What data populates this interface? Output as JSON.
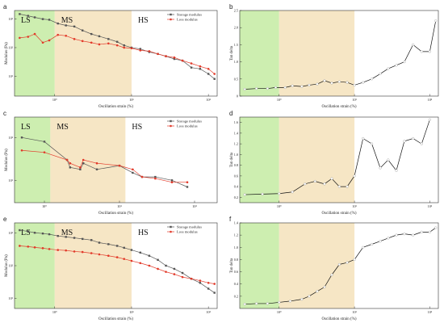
{
  "colors": {
    "ls_region": "#cdeeb0",
    "ms_region": "#f6e6c5",
    "storage": "#555555",
    "loss": "#e23a2a",
    "tan": "#111111"
  },
  "chart_data": [
    {
      "panel": "a",
      "type": "line",
      "ylabel": "Modulus (Pa)",
      "xlabel": "Oscillation strain (%)",
      "xscale": "log",
      "yscale": "log",
      "xlim": [
        0.3,
        130
      ],
      "ylim": [
        2,
        2000
      ],
      "xticks": [
        {
          "v": 1,
          "t": "10⁰"
        },
        {
          "v": 10,
          "t": "10¹"
        },
        {
          "v": 100,
          "t": "10²"
        }
      ],
      "yticks": [
        {
          "v": 10,
          "t": "10¹"
        },
        {
          "v": 100,
          "t": "10²"
        },
        {
          "v": 1000,
          "t": "10³"
        }
      ],
      "regions": [
        {
          "label": "LS",
          "x0": 0.3,
          "x1": 1
        },
        {
          "label": "MS",
          "x0": 1,
          "x1": 10
        },
        {
          "label": "HS",
          "x0": 10,
          "x1": 130
        }
      ],
      "legend": [
        "Storage modulus",
        "Loss modulus"
      ],
      "series": [
        {
          "name": "Storage modulus",
          "x": [
            0.35,
            0.45,
            0.55,
            0.7,
            0.85,
            1.1,
            1.4,
            1.8,
            2.3,
            3,
            3.8,
            5,
            6.5,
            8,
            10,
            13,
            17,
            22,
            28,
            36,
            46,
            60,
            78,
            100,
            120
          ],
          "y": [
            1500,
            1300,
            1150,
            1000,
            950,
            700,
            600,
            550,
            400,
            300,
            250,
            200,
            160,
            120,
            100,
            90,
            70,
            60,
            50,
            40,
            35,
            20,
            18,
            12,
            8
          ]
        },
        {
          "name": "Loss modulus",
          "x": [
            0.35,
            0.45,
            0.55,
            0.7,
            0.85,
            1.1,
            1.4,
            1.8,
            2.3,
            3,
            3.8,
            5,
            6.5,
            8,
            10,
            13,
            17,
            22,
            28,
            36,
            46,
            60,
            78,
            100,
            120
          ],
          "y": [
            220,
            240,
            300,
            150,
            180,
            280,
            260,
            200,
            170,
            150,
            130,
            140,
            120,
            100,
            95,
            80,
            75,
            60,
            50,
            45,
            35,
            28,
            22,
            18,
            12
          ]
        }
      ]
    },
    {
      "panel": "b",
      "type": "line",
      "ylabel": "Tan delta",
      "xlabel": "Oscillation strain (%)",
      "xscale": "log",
      "yscale": "linear",
      "xlim": [
        0.3,
        130
      ],
      "ylim": [
        0,
        2.5
      ],
      "xticks": [
        {
          "v": 1,
          "t": "10⁰"
        },
        {
          "v": 10,
          "t": "10¹"
        },
        {
          "v": 100,
          "t": "10²"
        }
      ],
      "yticks": [
        {
          "v": 0,
          "t": "0"
        },
        {
          "v": 0.5,
          "t": "0.5"
        },
        {
          "v": 1.0,
          "t": "1.0"
        },
        {
          "v": 1.5,
          "t": "1.5"
        },
        {
          "v": 2.0,
          "t": "2.0"
        },
        {
          "v": 2.5,
          "t": "2.5"
        }
      ],
      "regions": [
        {
          "label": "",
          "x0": 0.3,
          "x1": 1
        },
        {
          "label": "",
          "x0": 1,
          "x1": 10
        }
      ],
      "series": [
        {
          "name": "",
          "x": [
            0.35,
            0.5,
            0.7,
            0.9,
            1.2,
            1.5,
            2,
            2.5,
            3.2,
            4,
            5,
            6.3,
            8,
            10,
            13,
            17,
            22,
            28,
            36,
            46,
            60,
            78,
            100,
            120
          ],
          "y": [
            0.2,
            0.22,
            0.22,
            0.25,
            0.25,
            0.3,
            0.28,
            0.32,
            0.35,
            0.45,
            0.38,
            0.42,
            0.4,
            0.32,
            0.4,
            0.5,
            0.65,
            0.8,
            0.9,
            1.0,
            1.5,
            1.3,
            1.3,
            2.2
          ]
        }
      ]
    },
    {
      "panel": "c",
      "type": "line",
      "ylabel": "Modulus (Pa)",
      "xlabel": "Oscillation strain (%)",
      "xscale": "log",
      "yscale": "log",
      "xlim": [
        0.4,
        200
      ],
      "ylim": [
        3,
        300
      ],
      "xticks": [
        {
          "v": 1,
          "t": "10⁰"
        },
        {
          "v": 10,
          "t": "10¹"
        },
        {
          "v": 100,
          "t": "10²"
        }
      ],
      "yticks": [
        {
          "v": 10,
          "t": "10¹"
        },
        {
          "v": 100,
          "t": "10²"
        }
      ],
      "regions": [
        {
          "label": "LS",
          "x0": 0.4,
          "x1": 1.2
        },
        {
          "label": "MS",
          "x0": 1.2,
          "x1": 12
        },
        {
          "label": "HS",
          "x0": 12,
          "x1": 200
        }
      ],
      "legend": [
        "Storage modulus",
        "Loss modulus"
      ],
      "series": [
        {
          "name": "Storage modulus",
          "x": [
            0.5,
            1.0,
            2.0,
            2.2,
            3.0,
            3.3,
            5.0,
            10,
            15,
            20,
            30,
            50,
            80
          ],
          "y": [
            100,
            80,
            30,
            20,
            18,
            25,
            18,
            22,
            15,
            12,
            12,
            10,
            7
          ]
        },
        {
          "name": "Loss modulus",
          "x": [
            0.5,
            1.0,
            2.0,
            2.2,
            3.0,
            3.3,
            5.0,
            10,
            15,
            20,
            30,
            50,
            80
          ],
          "y": [
            50,
            45,
            30,
            25,
            20,
            30,
            25,
            22,
            18,
            12,
            11,
            9,
            9
          ]
        }
      ]
    },
    {
      "panel": "d",
      "type": "line",
      "ylabel": "Tan delta",
      "xlabel": "Oscillation strain (%)",
      "xscale": "log",
      "yscale": "linear",
      "xlim": [
        0.3,
        130
      ],
      "ylim": [
        0.1,
        1.7
      ],
      "xticks": [
        {
          "v": 1,
          "t": "10⁰"
        },
        {
          "v": 10,
          "t": "10¹"
        },
        {
          "v": 100,
          "t": "10²"
        }
      ],
      "yticks": [
        {
          "v": 0.2,
          "t": "0.2"
        },
        {
          "v": 0.4,
          "t": "0.4"
        },
        {
          "v": 0.6,
          "t": "0.6"
        },
        {
          "v": 0.8,
          "t": "0.8"
        },
        {
          "v": 1.0,
          "t": "1.0"
        },
        {
          "v": 1.2,
          "t": "1.2"
        },
        {
          "v": 1.4,
          "t": "1.4"
        },
        {
          "v": 1.6,
          "t": "1.6"
        }
      ],
      "regions": [
        {
          "label": "",
          "x0": 0.3,
          "x1": 1
        },
        {
          "label": "",
          "x0": 1,
          "x1": 10
        }
      ],
      "series": [
        {
          "name": "",
          "x": [
            0.35,
            0.6,
            1.0,
            1.5,
            2.2,
            3.0,
            4.0,
            5.0,
            6.3,
            8,
            10,
            13,
            17,
            22,
            28,
            36,
            46,
            60,
            78,
            100
          ],
          "y": [
            0.25,
            0.26,
            0.27,
            0.3,
            0.45,
            0.5,
            0.45,
            0.55,
            0.4,
            0.4,
            0.6,
            1.3,
            1.2,
            0.75,
            0.9,
            0.7,
            1.25,
            1.3,
            1.2,
            1.65
          ]
        }
      ]
    },
    {
      "panel": "e",
      "type": "line",
      "ylabel": "Modulus (Pa)",
      "xlabel": "Oscillation strain (%)",
      "xscale": "log",
      "yscale": "log",
      "xlim": [
        0.3,
        130
      ],
      "ylim": [
        5,
        2000
      ],
      "xticks": [
        {
          "v": 1,
          "t": "10⁰"
        },
        {
          "v": 10,
          "t": "10¹"
        },
        {
          "v": 100,
          "t": "10²"
        }
      ],
      "yticks": [
        {
          "v": 10,
          "t": "10¹"
        },
        {
          "v": 100,
          "t": "10²"
        },
        {
          "v": 1000,
          "t": "10³"
        }
      ],
      "regions": [
        {
          "label": "LS",
          "x0": 0.3,
          "x1": 1
        },
        {
          "label": "MS",
          "x0": 1,
          "x1": 10
        },
        {
          "label": "HS",
          "x0": 10,
          "x1": 130
        }
      ],
      "legend": [
        "Storage modulus",
        "Loss modulus"
      ],
      "series": [
        {
          "name": "Storage modulus",
          "x": [
            0.35,
            0.45,
            0.55,
            0.7,
            0.85,
            1.1,
            1.4,
            1.8,
            2.3,
            3,
            3.8,
            5,
            6.5,
            8,
            10,
            13,
            17,
            22,
            28,
            36,
            46,
            60,
            78,
            100,
            120
          ],
          "y": [
            1200,
            1100,
            1000,
            950,
            900,
            800,
            750,
            700,
            650,
            600,
            500,
            450,
            400,
            350,
            300,
            250,
            200,
            150,
            100,
            80,
            60,
            40,
            30,
            20,
            15
          ]
        },
        {
          "name": "Loss modulus",
          "x": [
            0.35,
            0.45,
            0.55,
            0.7,
            0.85,
            1.1,
            1.4,
            1.8,
            2.3,
            3,
            3.8,
            5,
            6.5,
            8,
            10,
            13,
            17,
            22,
            28,
            36,
            46,
            60,
            78,
            100,
            120
          ],
          "y": [
            400,
            380,
            360,
            340,
            320,
            300,
            290,
            270,
            260,
            240,
            220,
            200,
            180,
            160,
            140,
            120,
            100,
            80,
            65,
            55,
            45,
            40,
            35,
            30,
            28
          ]
        }
      ]
    },
    {
      "panel": "f",
      "type": "line",
      "ylabel": "Tan delta",
      "xlabel": "Oscillation strain (%)",
      "xscale": "log",
      "yscale": "linear",
      "xlim": [
        0.3,
        130
      ],
      "ylim": [
        0,
        1.4
      ],
      "xticks": [
        {
          "v": 1,
          "t": "10⁰"
        },
        {
          "v": 10,
          "t": "10¹"
        },
        {
          "v": 100,
          "t": "10²"
        }
      ],
      "yticks": [
        {
          "v": 0.2,
          "t": "0.2"
        },
        {
          "v": 0.4,
          "t": "0.4"
        },
        {
          "v": 0.6,
          "t": "0.6"
        },
        {
          "v": 0.8,
          "t": "0.8"
        },
        {
          "v": 1.0,
          "t": "1.0"
        },
        {
          "v": 1.2,
          "t": "1.2"
        },
        {
          "v": 1.4,
          "t": "1.4"
        }
      ],
      "regions": [
        {
          "label": "",
          "x0": 0.3,
          "x1": 1
        },
        {
          "label": "",
          "x0": 1,
          "x1": 10
        }
      ],
      "series": [
        {
          "name": "",
          "x": [
            0.35,
            0.5,
            0.7,
            1.0,
            1.4,
            2.0,
            2.5,
            3.2,
            4.0,
            5.0,
            6.3,
            8,
            10,
            13,
            17,
            22,
            28,
            36,
            46,
            60,
            78,
            100,
            120
          ],
          "y": [
            0.07,
            0.08,
            0.08,
            0.1,
            0.12,
            0.15,
            0.2,
            0.28,
            0.35,
            0.55,
            0.72,
            0.75,
            0.8,
            1.0,
            1.05,
            1.1,
            1.15,
            1.2,
            1.22,
            1.2,
            1.25,
            1.25,
            1.32
          ]
        }
      ]
    }
  ]
}
